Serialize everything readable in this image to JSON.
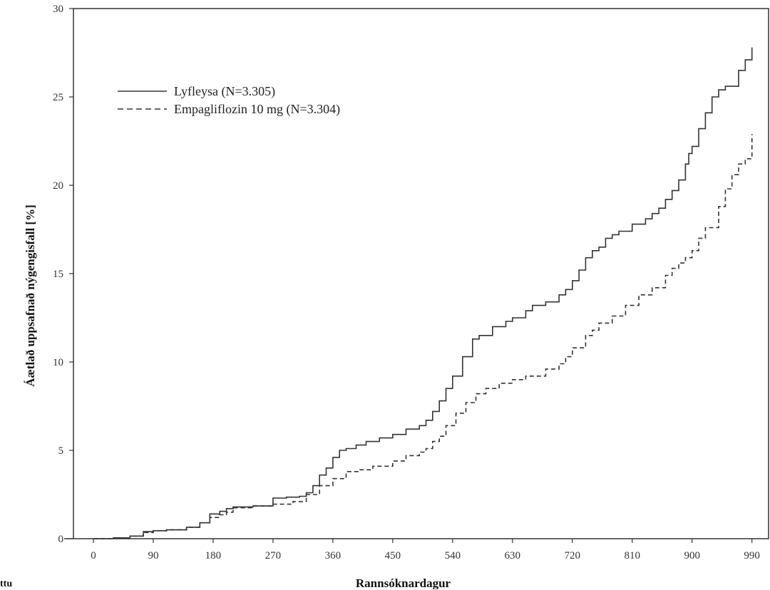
{
  "page": {
    "stray_text": "ttu"
  },
  "chart_data": {
    "type": "line",
    "title": "",
    "xlabel": "Rannsóknardagur",
    "ylabel": "Áætlað uppsafnað nýgengisfall [%]",
    "xlim": [
      -30,
      1015
    ],
    "ylim": [
      0,
      30
    ],
    "xticks": [
      0,
      90,
      180,
      270,
      360,
      450,
      540,
      630,
      720,
      810,
      900,
      990
    ],
    "yticks": [
      0,
      5,
      10,
      15,
      20,
      25,
      30
    ],
    "grid": false,
    "legend_position": "top-left",
    "colors": {
      "axis": "#333333",
      "line": "#333333"
    },
    "series": [
      {
        "name": "Lyfleysa (N=3.305)",
        "style": "solid",
        "x": [
          0,
          30,
          55,
          75,
          90,
          110,
          140,
          160,
          175,
          190,
          200,
          210,
          240,
          270,
          290,
          310,
          320,
          330,
          340,
          350,
          360,
          370,
          380,
          395,
          410,
          430,
          450,
          470,
          490,
          500,
          510,
          520,
          530,
          540,
          555,
          570,
          580,
          600,
          620,
          630,
          650,
          660,
          680,
          700,
          710,
          720,
          730,
          740,
          750,
          760,
          770,
          780,
          790,
          810,
          830,
          840,
          850,
          860,
          870,
          880,
          890,
          895,
          900,
          910,
          920,
          930,
          940,
          950,
          960,
          970,
          980,
          990
        ],
        "y": [
          0,
          0.05,
          0.15,
          0.4,
          0.45,
          0.5,
          0.65,
          0.9,
          1.4,
          1.55,
          1.7,
          1.8,
          1.85,
          2.3,
          2.35,
          2.4,
          2.6,
          3.0,
          3.6,
          4.0,
          4.6,
          5.0,
          5.1,
          5.3,
          5.5,
          5.7,
          5.9,
          6.2,
          6.4,
          6.7,
          7.2,
          7.8,
          8.5,
          9.2,
          10.3,
          11.3,
          11.5,
          12.0,
          12.3,
          12.5,
          12.9,
          13.2,
          13.4,
          13.8,
          14.1,
          14.6,
          15.2,
          15.9,
          16.3,
          16.5,
          17.0,
          17.2,
          17.4,
          17.8,
          18.1,
          18.4,
          18.7,
          19.2,
          19.7,
          20.3,
          21.2,
          21.8,
          22.2,
          23.2,
          24.1,
          25.0,
          25.4,
          25.6,
          25.6,
          26.5,
          27.1,
          27.8
        ]
      },
      {
        "name": "Empagliflozin 10 mg (N=3.304)",
        "style": "dashed",
        "x": [
          0,
          30,
          55,
          75,
          90,
          110,
          140,
          160,
          175,
          190,
          200,
          210,
          240,
          270,
          300,
          320,
          340,
          360,
          380,
          400,
          420,
          450,
          470,
          490,
          500,
          510,
          520,
          530,
          545,
          560,
          575,
          590,
          610,
          630,
          650,
          680,
          700,
          710,
          720,
          740,
          750,
          760,
          780,
          800,
          820,
          840,
          860,
          870,
          880,
          890,
          900,
          910,
          920,
          940,
          950,
          960,
          970,
          980,
          990
        ],
        "y": [
          0,
          0.05,
          0.15,
          0.35,
          0.45,
          0.5,
          0.65,
          0.9,
          1.2,
          1.35,
          1.5,
          1.75,
          1.85,
          1.95,
          2.1,
          2.5,
          3.0,
          3.4,
          3.8,
          3.9,
          4.1,
          4.4,
          4.7,
          4.9,
          5.1,
          5.5,
          5.8,
          6.4,
          7.1,
          7.7,
          8.2,
          8.5,
          8.8,
          9.0,
          9.2,
          9.6,
          9.9,
          10.3,
          10.8,
          11.5,
          11.8,
          12.2,
          12.6,
          13.2,
          13.8,
          14.2,
          14.9,
          15.3,
          15.6,
          15.9,
          16.3,
          17.0,
          17.6,
          18.8,
          19.8,
          20.6,
          21.2,
          21.5,
          22.9
        ]
      }
    ]
  }
}
